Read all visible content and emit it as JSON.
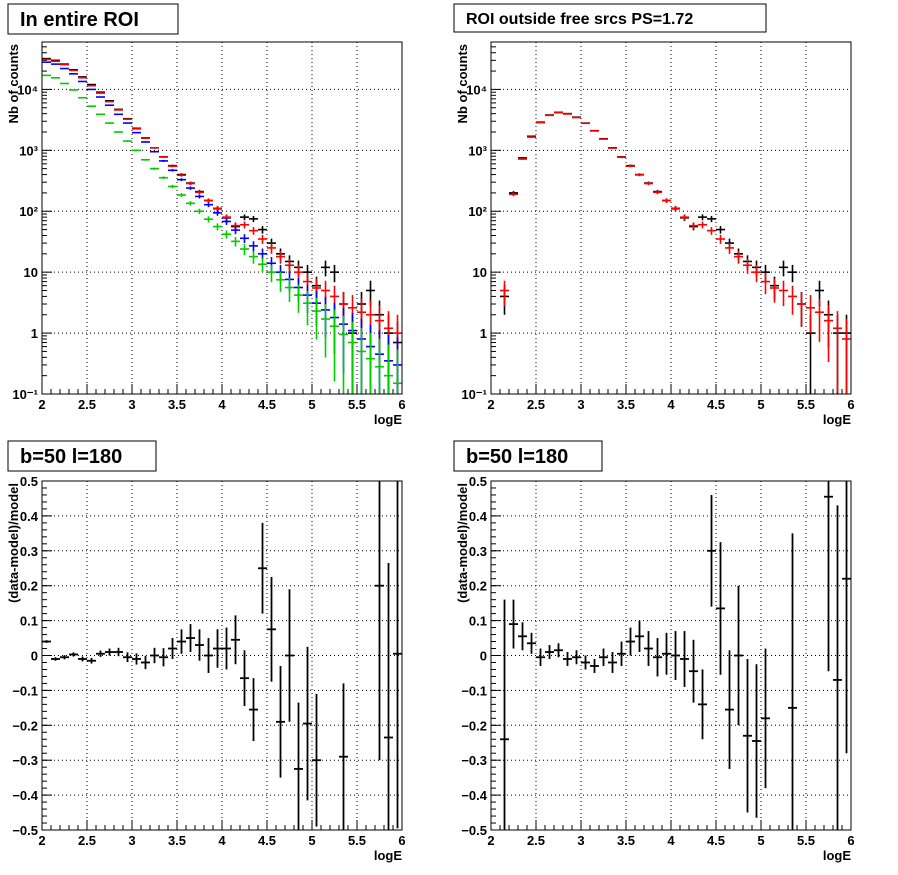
{
  "chart_data": [
    {
      "type": "scatter",
      "title": "In entire ROI",
      "xlabel": "logE",
      "ylabel": "Nb of counts",
      "xlim": [
        2,
        6
      ],
      "ylim": [
        0.1,
        60000
      ],
      "yscale": "log",
      "grid": true,
      "x_ticks": [
        "2",
        "2.5",
        "3",
        "3.5",
        "4",
        "4.5",
        "5",
        "5.5",
        "6"
      ],
      "y_ticks": [
        "10⁻¹",
        "1",
        "10",
        "10²",
        "10³",
        "10⁴"
      ],
      "x": [
        2.05,
        2.15,
        2.25,
        2.35,
        2.45,
        2.55,
        2.65,
        2.75,
        2.85,
        2.95,
        3.05,
        3.15,
        3.25,
        3.35,
        3.45,
        3.55,
        3.65,
        3.75,
        3.85,
        3.95,
        4.05,
        4.15,
        4.25,
        4.35,
        4.45,
        4.55,
        4.65,
        4.75,
        4.85,
        4.95,
        5.05,
        5.15,
        5.25,
        5.35,
        5.45,
        5.55,
        5.65,
        5.75,
        5.85,
        5.95
      ],
      "series": [
        {
          "color": "#000000",
          "values": [
            32000,
            30000,
            26000,
            21000,
            16000,
            12000,
            9000,
            6500,
            4700,
            3300,
            2300,
            1600,
            1100,
            780,
            560,
            400,
            290,
            210,
            150,
            110,
            78,
            56,
            80,
            75,
            50,
            30,
            20,
            15,
            12,
            10,
            6,
            12,
            10,
            3,
            1,
            3,
            5,
            2,
            1,
            0.7
          ]
        },
        {
          "color": "#ff0000",
          "values": [
            31000,
            29000,
            25500,
            20500,
            15500,
            11500,
            8700,
            6300,
            4600,
            3250,
            2250,
            1580,
            1100,
            780,
            550,
            390,
            285,
            205,
            150,
            112,
            80,
            58,
            60,
            48,
            35,
            25,
            18,
            13,
            10,
            7,
            5.5,
            5,
            4,
            3,
            2.6,
            2.2,
            2,
            1.6,
            1.2,
            1
          ]
        },
        {
          "color": "#0000ff",
          "values": [
            28000,
            26000,
            22000,
            18000,
            13500,
            10000,
            7500,
            5500,
            3900,
            2800,
            1950,
            1370,
            950,
            670,
            470,
            330,
            240,
            175,
            128,
            94,
            68,
            49,
            36,
            27,
            20,
            14,
            10,
            7.6,
            5.6,
            4.2,
            3.1,
            2.4,
            1.8,
            1.4,
            1.1,
            0.8,
            0.6,
            0.45,
            0.35,
            0.3
          ]
        },
        {
          "color": "#00cc00",
          "values": [
            17000,
            15500,
            12500,
            9800,
            7300,
            5300,
            3900,
            2800,
            2000,
            1420,
            1000,
            700,
            500,
            355,
            255,
            185,
            135,
            100,
            74,
            56,
            42,
            32,
            24,
            18,
            13.5,
            10,
            7.5,
            5.6,
            4.2,
            3.1,
            2.3,
            1.7,
            1.3,
            0.95,
            0.7,
            0.5,
            0.38,
            0.28,
            0.2,
            0.15
          ]
        }
      ]
    },
    {
      "type": "scatter",
      "title": "ROI outside free srcs PS=1.72",
      "xlabel": "logE",
      "ylabel": "Nb of counts",
      "xlim": [
        2,
        6
      ],
      "ylim": [
        0.1,
        60000
      ],
      "yscale": "log",
      "grid": true,
      "x_ticks": [
        "2",
        "2.5",
        "3",
        "3.5",
        "4",
        "4.5",
        "5",
        "5.5",
        "6"
      ],
      "y_ticks": [
        "10⁻¹",
        "1",
        "10",
        "10²",
        "10³",
        "10⁴"
      ],
      "x": [
        2.15,
        2.25,
        2.35,
        2.45,
        2.55,
        2.65,
        2.75,
        2.85,
        2.95,
        3.05,
        3.15,
        3.25,
        3.35,
        3.45,
        3.55,
        3.65,
        3.75,
        3.85,
        3.95,
        4.05,
        4.15,
        4.25,
        4.35,
        4.45,
        4.55,
        4.65,
        4.75,
        4.85,
        4.95,
        5.05,
        5.15,
        5.25,
        5.35,
        5.45,
        5.55,
        5.65,
        5.75,
        5.85,
        5.95
      ],
      "series": [
        {
          "color": "#000000",
          "values": [
            4,
            200,
            750,
            1700,
            2900,
            3800,
            4200,
            4000,
            3500,
            2800,
            2100,
            1550,
            1100,
            780,
            560,
            400,
            290,
            210,
            150,
            110,
            78,
            56,
            80,
            75,
            50,
            30,
            20,
            15,
            12,
            10,
            6,
            12,
            10,
            3,
            1,
            5,
            2,
            1,
            1
          ]
        },
        {
          "color": "#ff0000",
          "values": [
            5,
            190,
            720,
            1650,
            2850,
            3750,
            4150,
            3950,
            3450,
            2780,
            2080,
            1530,
            1090,
            770,
            550,
            395,
            285,
            205,
            150,
            112,
            80,
            58,
            60,
            48,
            35,
            25,
            18,
            13,
            10,
            7,
            5.5,
            5,
            4,
            3,
            2.6,
            2.2,
            1.6,
            1.2,
            0.8
          ]
        }
      ]
    },
    {
      "type": "scatter",
      "title": "b=50 l=180",
      "xlabel": "logE",
      "ylabel": "(data-model)/model",
      "xlim": [
        2,
        6
      ],
      "ylim": [
        -0.5,
        0.5
      ],
      "grid": true,
      "x_ticks": [
        "2",
        "2.5",
        "3",
        "3.5",
        "4",
        "4.5",
        "5",
        "5.5",
        "6"
      ],
      "y_ticks": [
        "−0.5",
        "−0.4",
        "−0.3",
        "−0.2",
        "−0.1",
        "0",
        "0.1",
        "0.2",
        "0.3",
        "0.4",
        "0.5"
      ],
      "x": [
        2.05,
        2.15,
        2.25,
        2.35,
        2.45,
        2.55,
        2.65,
        2.75,
        2.85,
        2.95,
        3.05,
        3.15,
        3.25,
        3.35,
        3.45,
        3.55,
        3.65,
        3.75,
        3.85,
        3.95,
        4.05,
        4.15,
        4.25,
        4.35,
        4.45,
        4.55,
        4.65,
        4.75,
        4.85,
        4.95,
        5.05,
        5.35,
        5.75,
        5.85,
        5.95
      ],
      "values": [
        0.04,
        -0.01,
        -0.005,
        0.003,
        -0.01,
        -0.015,
        0.005,
        0.01,
        0.01,
        -0.005,
        -0.01,
        -0.02,
        0.0,
        -0.005,
        0.02,
        0.04,
        0.05,
        0.03,
        0.0,
        0.02,
        0.02,
        0.045,
        -0.065,
        -0.155,
        0.25,
        0.075,
        -0.19,
        0.0,
        -0.325,
        -0.195,
        -0.3,
        -0.29,
        0.2,
        -0.235,
        0.005
      ],
      "errors": [
        0.004,
        0.005,
        0.006,
        0.006,
        0.007,
        0.008,
        0.009,
        0.01,
        0.012,
        0.014,
        0.016,
        0.019,
        0.022,
        0.026,
        0.03,
        0.035,
        0.04,
        0.045,
        0.05,
        0.055,
        0.06,
        0.07,
        0.08,
        0.09,
        0.13,
        0.15,
        0.16,
        0.19,
        0.19,
        0.22,
        0.19,
        0.21,
        0.5,
        0.5,
        0.5
      ]
    },
    {
      "type": "scatter",
      "title": "b=50 l=180",
      "xlabel": "logE",
      "ylabel": "(data-model)/model",
      "xlim": [
        2,
        6
      ],
      "ylim": [
        -0.5,
        0.5
      ],
      "grid": true,
      "x_ticks": [
        "2",
        "2.5",
        "3",
        "3.5",
        "4",
        "4.5",
        "5",
        "5.5",
        "6"
      ],
      "y_ticks": [
        "−0.5",
        "−0.4",
        "−0.3",
        "−0.2",
        "−0.1",
        "0",
        "0.1",
        "0.2",
        "0.3",
        "0.4",
        "0.5"
      ],
      "x": [
        2.15,
        2.25,
        2.35,
        2.45,
        2.55,
        2.65,
        2.75,
        2.85,
        2.95,
        3.05,
        3.15,
        3.25,
        3.35,
        3.45,
        3.55,
        3.65,
        3.75,
        3.85,
        3.95,
        4.05,
        4.15,
        4.25,
        4.35,
        4.45,
        4.55,
        4.65,
        4.75,
        4.85,
        4.95,
        5.05,
        5.35,
        5.75,
        5.85,
        5.95
      ],
      "values": [
        -0.24,
        0.09,
        0.055,
        0.035,
        -0.005,
        0.01,
        0.015,
        -0.01,
        -0.005,
        -0.02,
        -0.03,
        -0.005,
        -0.02,
        0.005,
        0.04,
        0.055,
        0.02,
        -0.005,
        0.005,
        0.0,
        -0.01,
        -0.045,
        -0.14,
        0.3,
        0.135,
        -0.155,
        0.0,
        -0.23,
        -0.245,
        -0.18,
        -0.15,
        0.455,
        -0.07,
        0.22
      ],
      "errors": [
        0.4,
        0.07,
        0.04,
        0.03,
        0.025,
        0.02,
        0.02,
        0.02,
        0.02,
        0.02,
        0.02,
        0.025,
        0.03,
        0.035,
        0.04,
        0.045,
        0.05,
        0.055,
        0.06,
        0.07,
        0.08,
        0.09,
        0.1,
        0.16,
        0.19,
        0.17,
        0.2,
        0.22,
        0.22,
        0.2,
        0.5,
        0.5,
        0.5,
        0.5
      ]
    }
  ]
}
